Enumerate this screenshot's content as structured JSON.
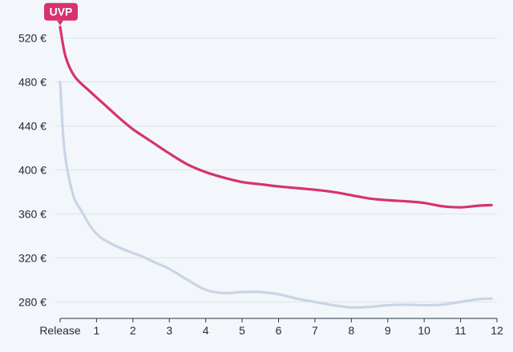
{
  "chart_data": {
    "type": "line",
    "title": "",
    "xlabel": "",
    "ylabel": "",
    "x_ticks": [
      "Release",
      "1",
      "2",
      "3",
      "4",
      "5",
      "6",
      "7",
      "8",
      "9",
      "10",
      "11",
      "12"
    ],
    "y_ticks": [
      "280 €",
      "320 €",
      "360 €",
      "400 €",
      "440 €",
      "480 €",
      "520 €"
    ],
    "xlim": [
      0,
      12
    ],
    "ylim": [
      265,
      540
    ],
    "grid": "horizontal",
    "colors": {
      "uvp": "#d6336c",
      "price": "#c9d5e6"
    },
    "series": [
      {
        "name": "UVP",
        "color": "#d6336c",
        "x": [
          0,
          0.15,
          0.4,
          0.8,
          1.2,
          1.6,
          2.0,
          2.5,
          3.0,
          3.5,
          4.0,
          4.5,
          5.0,
          5.5,
          6.0,
          6.5,
          7.0,
          7.5,
          8.0,
          8.5,
          9.0,
          9.5,
          10.0,
          10.5,
          11.0,
          11.5,
          11.85
        ],
        "y": [
          530,
          503,
          485,
          472,
          460,
          448,
          437,
          426,
          415,
          405,
          398,
          393,
          389,
          387,
          385,
          383.5,
          382,
          380,
          377,
          374,
          372.5,
          371.5,
          370,
          367,
          366,
          367.5,
          368
        ]
      },
      {
        "name": "",
        "color": "#c9d5e6",
        "x": [
          0,
          0.12,
          0.35,
          0.6,
          0.85,
          1.1,
          1.4,
          1.8,
          2.2,
          2.6,
          3.0,
          3.5,
          4.0,
          4.5,
          5.0,
          5.5,
          6.0,
          6.5,
          7.0,
          7.5,
          8.0,
          8.5,
          9.0,
          9.5,
          10.0,
          10.5,
          11.0,
          11.5,
          11.85
        ],
        "y": [
          480,
          418,
          378,
          362,
          348,
          339,
          333,
          327,
          322,
          316,
          310,
          300,
          291,
          288,
          289,
          289,
          287,
          283,
          280,
          277,
          275,
          275.5,
          277,
          277.5,
          277,
          277.5,
          280,
          282.5,
          283
        ]
      }
    ],
    "annotations": [
      {
        "text": "UVP",
        "x": 0,
        "y": 530,
        "series": "UVP"
      }
    ]
  }
}
